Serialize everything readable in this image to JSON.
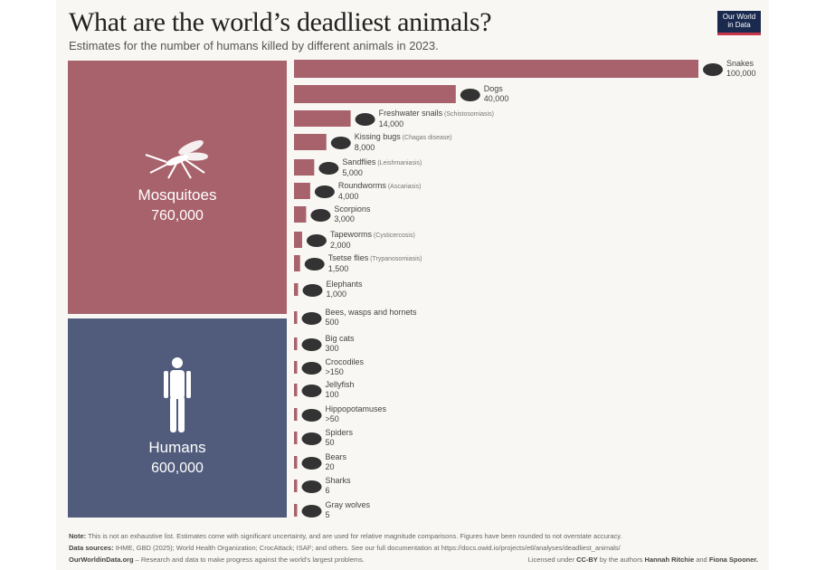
{
  "header": {
    "title": "What are the world’s deadliest animals?",
    "subtitle": "Estimates for the number of humans killed by different animals in 2023.",
    "logo": "Our World in Data"
  },
  "colors": {
    "mosquito_bar": "#a8626c",
    "humans_block": "#515c7c",
    "icon": "#333333",
    "background": "#f8f7f3"
  },
  "chart_data": {
    "type": "bar",
    "orientation": "horizontal",
    "title": "What are the world’s deadliest animals?",
    "blocks": [
      {
        "name": "Mosquitoes",
        "value": 760000,
        "label": "760,000",
        "icon": "mosquito-icon"
      },
      {
        "name": "Humans",
        "value": 600000,
        "label": "600,000",
        "icon": "human-icon"
      }
    ],
    "bars": [
      {
        "name": "Snakes",
        "note": "",
        "value": 100000,
        "label": "100,000",
        "icon": "snake-icon"
      },
      {
        "name": "Dogs",
        "note": "",
        "value": 40000,
        "label": "40,000",
        "icon": "dog-icon"
      },
      {
        "name": "Freshwater snails",
        "note": "(Schistosomiasis)",
        "value": 14000,
        "label": "14,000",
        "icon": "snail-icon"
      },
      {
        "name": "Kissing bugs",
        "note": "(Chagas disease)",
        "value": 8000,
        "label": "8,000",
        "icon": "bug-icon"
      },
      {
        "name": "Sandflies",
        "note": "(Leishmaniasis)",
        "value": 5000,
        "label": "5,000",
        "icon": "sandfly-icon"
      },
      {
        "name": "Roundworms",
        "note": "(Ascariasis)",
        "value": 4000,
        "label": "4,000",
        "icon": "worm-icon"
      },
      {
        "name": "Scorpions",
        "note": "",
        "value": 3000,
        "label": "3,000",
        "icon": "scorpion-icon"
      },
      {
        "name": "Tapeworms",
        "note": "(Cysticercosis)",
        "value": 2000,
        "label": "2,000",
        "icon": "tapeworm-icon"
      },
      {
        "name": "Tsetse flies",
        "note": "(Trypanosomiasis)",
        "value": 1500,
        "label": "1,500",
        "icon": "fly-icon"
      },
      {
        "name": "Elephants",
        "note": "",
        "value": 1000,
        "label": "1,000",
        "icon": "elephant-icon"
      },
      {
        "name": "Bees, wasps and hornets",
        "note": "",
        "value": 500,
        "label": "500",
        "icon": "bee-icon"
      },
      {
        "name": "Big cats",
        "note": "",
        "value": 300,
        "label": "300",
        "icon": "big-cat-icon"
      },
      {
        "name": "Crocodiles",
        "note": "",
        "value": 150,
        "label": ">150",
        "icon": "crocodile-icon"
      },
      {
        "name": "Jellyfish",
        "note": "",
        "value": 100,
        "label": "100",
        "icon": "jellyfish-icon"
      },
      {
        "name": "Hippopotamuses",
        "note": "",
        "value": 50,
        "label": ">50",
        "icon": "hippo-icon"
      },
      {
        "name": "Spiders",
        "note": "",
        "value": 50,
        "label": "50",
        "icon": "spider-icon"
      },
      {
        "name": "Bears",
        "note": "",
        "value": 20,
        "label": "20",
        "icon": "bear-icon"
      },
      {
        "name": "Sharks",
        "note": "",
        "value": 6,
        "label": "6",
        "icon": "shark-icon"
      },
      {
        "name": "Gray wolves",
        "note": "",
        "value": 5,
        "label": "5",
        "icon": "wolf-icon"
      }
    ],
    "xlim": [
      0,
      100000
    ]
  },
  "footer": {
    "note_label": "Note:",
    "note": "This is not an exhaustive list. Estimates come with significant uncertainty, and are used for relative magnitude comparisons. Figures have been rounded to not overstate accuracy.",
    "sources_label": "Data sources:",
    "sources": "IHME, GBD (2025); World Health Organization; CrocAttack; ISAF; and others. See our full documentation at https://docs.owid.io/projects/etl/analyses/deadliest_animals/",
    "site": "OurWorldinData.org",
    "tagline": "– Research and data to make progress against the world's largest problems.",
    "license_pre": "Licensed under",
    "license": "CC-BY",
    "authors_pre": "by the authors",
    "author1": "Hannah Ritchie",
    "and": "and",
    "author2": "Fiona Spooner."
  }
}
